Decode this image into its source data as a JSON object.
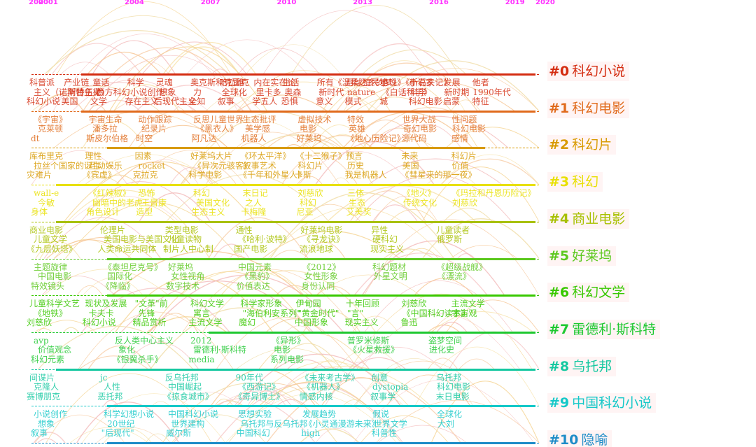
{
  "years": [
    "2000",
    "2001",
    "2004",
    "2007",
    "2010",
    "2013",
    "2016",
    "2019",
    "2020"
  ],
  "clusters": [
    {
      "id": "#0",
      "name": "科幻小说",
      "color": "#d42c10",
      "keywords": [
        "科普派",
        "产业链",
        "童话",
        "科学",
        "灵魂",
        "奥克斯和克雷克",
        "哈拉维",
        "内在实在论",
        "生活",
        "所有《温柔之乡的梦》",
        "月球殖民地",
        "小说》《新石头记》",
        "小说家",
        "发展",
        "他者",
        "主义（诺斯替主义）",
        "阿特伍德",
        "西方科幻",
        "小说创作",
        "想象",
        "力",
        "全球化",
        "里卡多",
        "奥森",
        "新时代",
        "nature",
        "《白话科学》",
        "科学",
        "新时期",
        "1990年代",
        "科幻小说",
        "美国",
        "文学",
        "存在主义",
        "后现代主义",
        "全知",
        "叙事",
        "学五人",
        "恐惧",
        "意义",
        "模式",
        "城",
        "科幻电影",
        "启蒙",
        "特征"
      ]
    },
    {
      "id": "#1",
      "name": "科幻电影",
      "color": "#e06a1b",
      "keywords": [
        "《宇宙》",
        "宇宙生命",
        "动作跟踪",
        "反思儿童世界",
        "生态批评",
        "虚拟技术",
        "特效",
        "世界大战",
        "性问题",
        "克莱顿",
        "潘多拉",
        "纪录片",
        "《黑衣人》",
        "美学感",
        "电影",
        "英雄",
        "奇幻电影",
        "科幻电影",
        "dt",
        "斯皮尔伯格",
        "时空",
        "阿凡达",
        "机器人",
        "好莱坞",
        "《地心历险记》",
        "源代码",
        "感情"
      ]
    },
    {
      "id": "#2",
      "name": "科幻片",
      "color": "#d89a00",
      "keywords": [
        "库布里克",
        "理性",
        "因素",
        "好莱坞大片",
        "《环太平洋》",
        "《十二猴子》",
        "预言",
        "未来",
        "科幻片",
        "拉丝个国家的诞生",
        "互动娱乐",
        "rocket",
        "《异次元骇客》",
        "叙事艺术",
        "科幻片",
        "历史",
        "美国",
        "价值",
        "灾难片",
        "《宾虚》",
        "克拉克",
        "科学电影",
        "《千年和外星人》",
        "卡斯",
        "我是机器人",
        "《彗星来的那一夜》"
      ]
    },
    {
      "id": "#3",
      "name": "科幻",
      "color": "#e8e000",
      "keywords": [
        "wall-e",
        "《红辣椒》",
        "恐怖",
        "科幻",
        "末日记",
        "刘慈欣",
        "三体",
        "《地火》",
        "《玛拉和丹恩历险记》",
        "今敏",
        "幽暗中的老虎",
        "王晋康",
        "美国文化",
        "之人",
        "科幻",
        "生态",
        "传统文化",
        "刘慈欣",
        "身体",
        "角色设计",
        "造型",
        "生态主义",
        "卡梅隆",
        "尼亚",
        "艾美奖"
      ]
    },
    {
      "id": "#4",
      "name": "商业电影",
      "color": "#a8c000",
      "keywords": [
        "商业电影",
        "伦理片",
        "类型电影",
        "通性",
        "好莱坞电影",
        "异性",
        "儿童读者",
        "儿童文学",
        "美国电影与美国文化",
        "儿童读物",
        "《哈利·波特》",
        "《寻龙诀》",
        "硬科幻",
        "俄罗斯",
        "《九层妖塔》",
        "人类命运共同体",
        "制片人中心制",
        "国产电影",
        "流浪地球",
        "现实主义"
      ]
    },
    {
      "id": "#5",
      "name": "好莱坞",
      "color": "#5cc81e",
      "keywords": [
        "主题旋律",
        "《泰坦尼克号》",
        "好莱坞",
        "中国元素",
        "《2012》",
        "科幻题材",
        "《超级战舰》",
        "中国电影",
        "国际化",
        "女性视角",
        "《黑豹》",
        "女性形象",
        "外星文明",
        "《漂流》",
        "特效镜头",
        "《降临》",
        "数字技术",
        "价值表达",
        "身份认同"
      ]
    },
    {
      "id": "#6",
      "name": "科幻文学",
      "color": "#38c800",
      "keywords": [
        "儿童科学文艺",
        "现状及发展",
        "\"文革\"前",
        "科幻文学",
        "科学家形象",
        "伊甸园",
        "十年回顾",
        "刘慈欣",
        "主流文学",
        "《地铁》",
        "卡夫卡",
        "先锋",
        "寓言",
        "\"海伯利安系列\"",
        "\"黄金时代\"",
        "\"言\"",
        "《中国科幻读本》",
        "宇宙观",
        "刘慈欣",
        "科幻小说",
        "精品赏析",
        "主流文学",
        "魔幻",
        "中国形象",
        "现实主义",
        "鲁迅"
      ]
    },
    {
      "id": "#7",
      "name": "雷德利·斯科特",
      "color": "#1ec830",
      "keywords": [
        "avp",
        "反人类中心主义",
        "2012",
        "《异形》",
        "普罗米修斯",
        "盗梦空间",
        "价值观念",
        "象化",
        "雷德利·斯科特",
        "电影",
        "《火星救援》",
        "进化史",
        "科幻元素",
        "《银翼杀手》",
        "media",
        "系列电影"
      ]
    },
    {
      "id": "#8",
      "name": "乌托邦",
      "color": "#14c8a0",
      "keywords": [
        "间谍片",
        "jc",
        "反乌托邦",
        "90年代",
        "《未来考古学》",
        "创意",
        "乌托邦",
        "克隆人",
        "人性",
        "中国崛起",
        "《西游记》",
        "《机器人》",
        "dystopia",
        "科幻电影",
        "赛博朋克",
        "恶托邦",
        "《掠食城市》",
        "《奇异博士》",
        "情感内核",
        "叙事学",
        "末日电影"
      ]
    },
    {
      "id": "#9",
      "name": "中国科幻小说",
      "color": "#14c8c8",
      "keywords": [
        "小说创作",
        "科学幻想小说",
        "中国科幻小说",
        "思想实验",
        "发展趋势",
        "假说",
        "全球化",
        "想象",
        "20世纪",
        "世界建构",
        "乌托邦与反乌托邦",
        "《小灵通漫游未来》",
        "世界文学",
        "大刘",
        "叙事",
        "\"后现代\"",
        "威尔斯",
        "中国科幻",
        "high",
        "科普性"
      ]
    },
    {
      "id": "#10",
      "name": "隐喻",
      "color": "#1e8cc8",
      "keywords": []
    }
  ]
}
